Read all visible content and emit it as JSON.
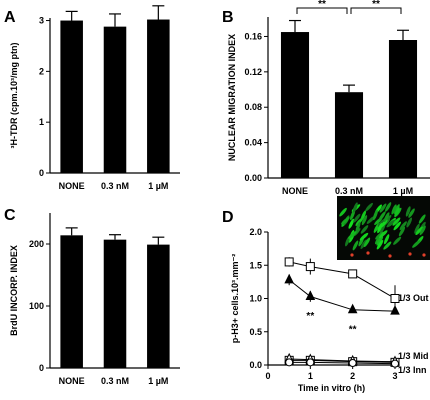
{
  "chart_data": [
    {
      "type": "bar",
      "panel": "A",
      "ylabel": "³H-TDR (cpm.10³/mg ptn)",
      "categories": [
        "NONE",
        "0.3 nM",
        "1 µM"
      ],
      "values": [
        3.0,
        2.88,
        3.02
      ],
      "errors": [
        0.18,
        0.25,
        0.27
      ],
      "ylim": [
        0,
        3
      ],
      "yticks": [
        "0",
        "1",
        "2",
        "3"
      ],
      "significance": []
    },
    {
      "type": "bar",
      "panel": "B",
      "ylabel": "NUCLEAR MIGRATION INDEX",
      "categories": [
        "NONE",
        "0.3 nM",
        "1 µM"
      ],
      "values": [
        0.165,
        0.097,
        0.156
      ],
      "errors": [
        0.013,
        0.008,
        0.011
      ],
      "ylim": [
        0,
        0.18
      ],
      "yticks": [
        "0.00",
        "0.04",
        "0.08",
        "0.12",
        "0.16"
      ],
      "significance": [
        {
          "from": 0,
          "to": 1,
          "label": "**"
        },
        {
          "from": 1,
          "to": 2,
          "label": "**"
        }
      ]
    },
    {
      "type": "bar",
      "panel": "C",
      "ylabel": "BrdU INCORP. INDEX",
      "categories": [
        "NONE",
        "0.3 nM",
        "1 µM"
      ],
      "values": [
        214,
        207,
        199
      ],
      "errors": [
        12,
        8,
        12
      ],
      "ylim": [
        0,
        250
      ],
      "yticks": [
        "0",
        "100",
        "200"
      ],
      "significance": []
    },
    {
      "type": "line",
      "panel": "D",
      "xlabel": "Time in vitro (h)",
      "ylabel": "p-H3+ cells.10³.mm⁻²",
      "xlim": [
        0,
        3
      ],
      "ylim": [
        0,
        2.0
      ],
      "xticks": [
        "0",
        "1",
        "2",
        "3"
      ],
      "yticks": [
        "0.0",
        "0.5",
        "1.0",
        "1.5",
        "2.0"
      ],
      "series": [
        {
          "marker": "open-square",
          "x": [
            0.5,
            1,
            2,
            3
          ],
          "y": [
            1.55,
            1.48,
            1.37,
            1.0
          ],
          "errors": [
            0.07,
            0.12,
            0.04,
            0.2
          ]
        },
        {
          "marker": "filled-triangle",
          "x": [
            0.5,
            1,
            2,
            3
          ],
          "y": [
            1.28,
            1.03,
            0.83,
            0.81
          ],
          "errors": [
            0.08,
            0.08,
            0.04,
            0.04
          ]
        },
        {
          "marker": "open-square",
          "x": [
            0.5,
            1,
            2,
            3
          ],
          "y": [
            0.07,
            0.07,
            0.05,
            0.04
          ],
          "errors": [
            0.02,
            0.02,
            0.02,
            0.02
          ]
        },
        {
          "marker": "open-triangle",
          "x": [
            0.5,
            1,
            2,
            3
          ],
          "y": [
            0.09,
            0.08,
            0.06,
            0.05
          ],
          "errors": [
            0.02,
            0.02,
            0.02,
            0.02
          ]
        },
        {
          "marker": "open-circle",
          "x": [
            0.5,
            1,
            2,
            3
          ],
          "y": [
            0.04,
            0.04,
            0.03,
            0.02
          ],
          "errors": [
            0.01,
            0.01,
            0.01,
            0.01
          ]
        }
      ],
      "annotations": [
        {
          "text": "**",
          "x": 1,
          "y": 0.87
        },
        {
          "text": "**",
          "x": 2,
          "y": 0.67
        }
      ],
      "layer_labels": [
        "1/3 Out",
        "1/3 Mid",
        "1/3 Inn"
      ]
    }
  ]
}
